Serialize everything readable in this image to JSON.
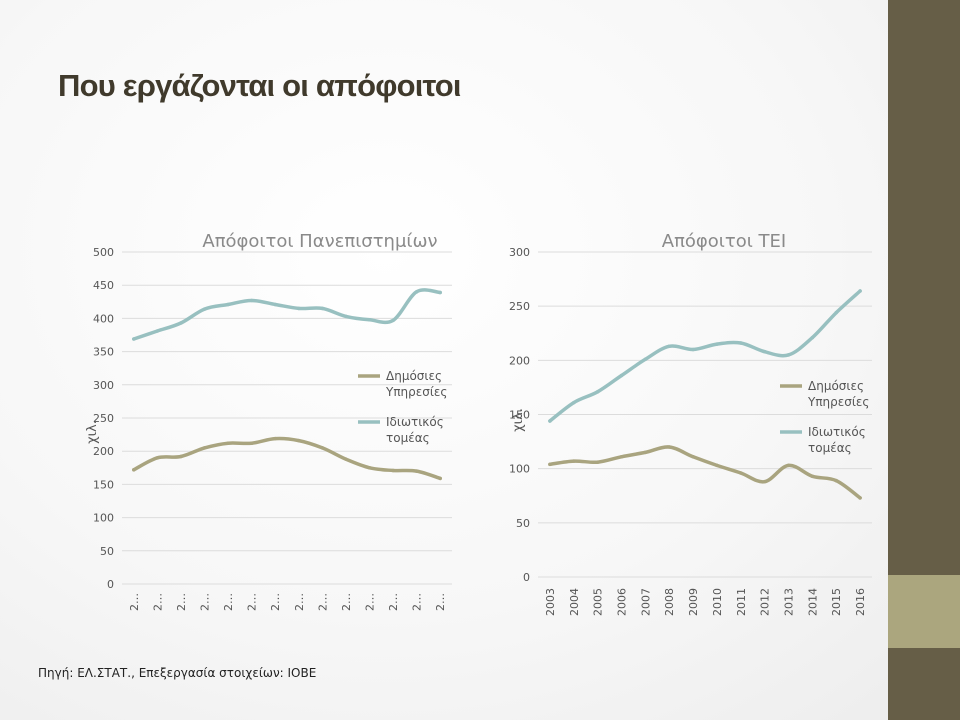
{
  "slide": {
    "title": "Που εργάζονται οι απόφοιτοι",
    "source": "Πηγή: ΕΛ.ΣΤΑΤ., Επεξεργασία στοιχείων: ΙΟΒΕ"
  },
  "colors": {
    "public_series": "#a9a47f",
    "private_series": "#98c0c0",
    "gridline": "#dcdcdc",
    "side_bar_dark": "#665e47",
    "side_bar_light": "#aba67e"
  },
  "chart_data": [
    {
      "type": "line",
      "title": "Απόφοιτοι Πανεπιστημίων",
      "ylabel": "χιλ.",
      "xlabel": "",
      "ylim": [
        0,
        500
      ],
      "yticks": [
        0,
        50,
        100,
        150,
        200,
        250,
        300,
        350,
        400,
        450,
        500
      ],
      "categories": [
        "2…",
        "2…",
        "2…",
        "2…",
        "2…",
        "2…",
        "2…",
        "2…",
        "2…",
        "2…",
        "2…",
        "2…",
        "2…",
        "2…"
      ],
      "grid": true,
      "legend_position": "right",
      "series": [
        {
          "name": "Δημόσιες Υπηρεσίες",
          "values": [
            172,
            190,
            192,
            205,
            212,
            212,
            219,
            216,
            205,
            188,
            175,
            171,
            170,
            159
          ]
        },
        {
          "name": "Ιδιωτικός τομέας",
          "values": [
            369,
            381,
            393,
            414,
            421,
            427,
            421,
            415,
            415,
            403,
            398,
            397,
            440,
            439
          ]
        }
      ]
    },
    {
      "type": "line",
      "title": "Απόφοιτοι ΤΕΙ",
      "ylabel": "χιλ.",
      "xlabel": "",
      "ylim": [
        0,
        300
      ],
      "yticks": [
        0,
        50,
        100,
        150,
        200,
        250,
        300
      ],
      "categories": [
        "2003",
        "2004",
        "2005",
        "2006",
        "2007",
        "2008",
        "2009",
        "2010",
        "2011",
        "2012",
        "2013",
        "2014",
        "2015",
        "2016"
      ],
      "grid": true,
      "legend_position": "right",
      "series": [
        {
          "name": "Δημόσιες Υπηρεσίες",
          "values": [
            104,
            107,
            106,
            111,
            115,
            120,
            111,
            103,
            96,
            88,
            103,
            93,
            89,
            73
          ]
        },
        {
          "name": "Ιδιωτικός τομέας",
          "values": [
            144,
            161,
            171,
            186,
            201,
            213,
            210,
            215,
            216,
            208,
            205,
            221,
            244,
            264
          ]
        }
      ]
    }
  ]
}
